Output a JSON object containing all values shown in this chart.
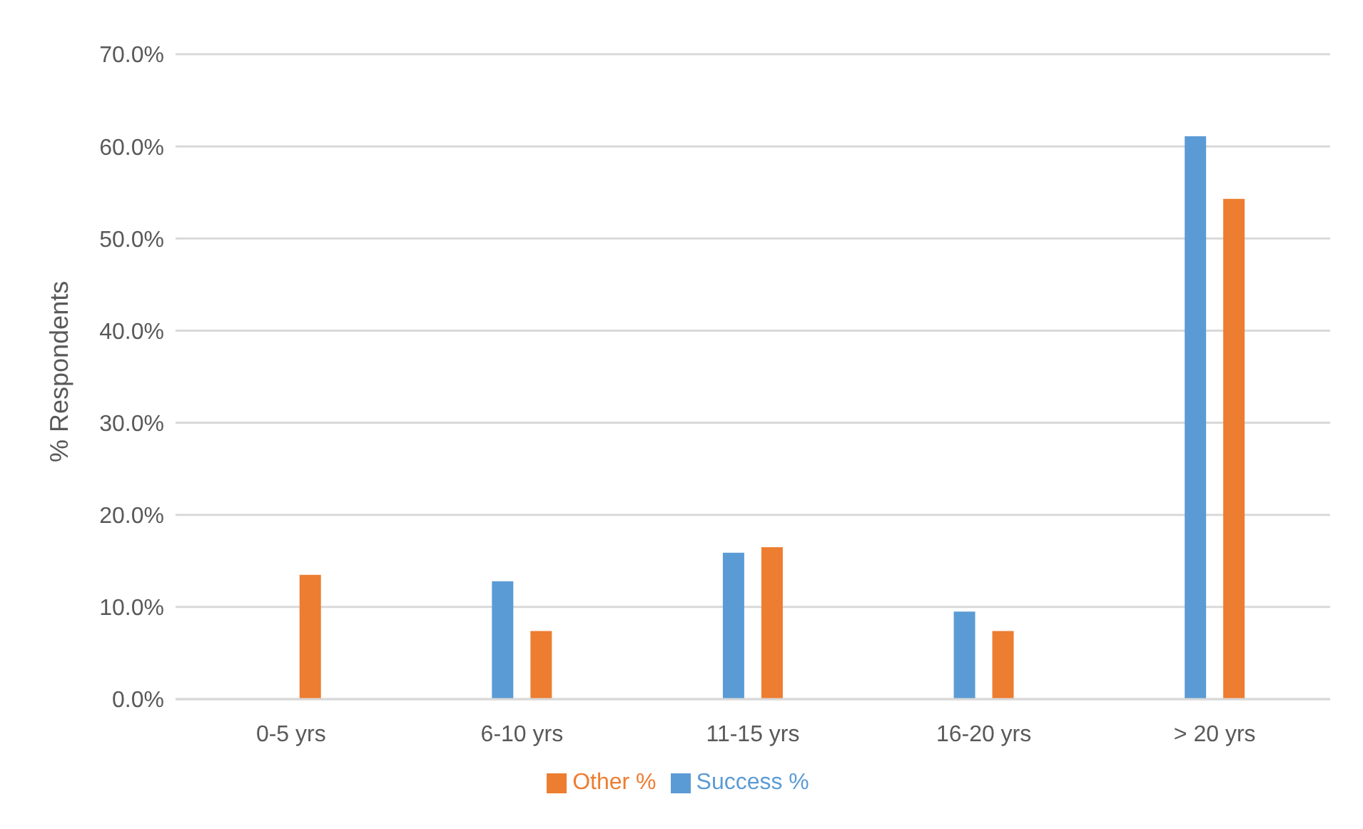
{
  "chart_data": {
    "type": "bar",
    "ylabel": "% Respondents",
    "categories": [
      "0-5 yrs",
      "6-10 yrs",
      "11-15 yrs",
      "16-20 yrs",
      "> 20 yrs"
    ],
    "series": [
      {
        "name": "Success %",
        "color": "#5b9bd5",
        "values": [
          0,
          12.8,
          15.9,
          9.5,
          61.1
        ]
      },
      {
        "name": "Other %",
        "color": "#ed7d31",
        "values": [
          13.5,
          7.4,
          16.5,
          7.4,
          54.3
        ]
      }
    ],
    "ylim": [
      0,
      70
    ],
    "yticks": [
      {
        "value": 0,
        "label": "0.0%"
      },
      {
        "value": 10,
        "label": "10.0%"
      },
      {
        "value": 20,
        "label": "20.0%"
      },
      {
        "value": 30,
        "label": "30.0%"
      },
      {
        "value": 40,
        "label": "40.0%"
      },
      {
        "value": 50,
        "label": "50.0%"
      },
      {
        "value": 60,
        "label": "60.0%"
      },
      {
        "value": 70,
        "label": "70.0%"
      }
    ],
    "grid": "y",
    "legend": "bottom"
  }
}
